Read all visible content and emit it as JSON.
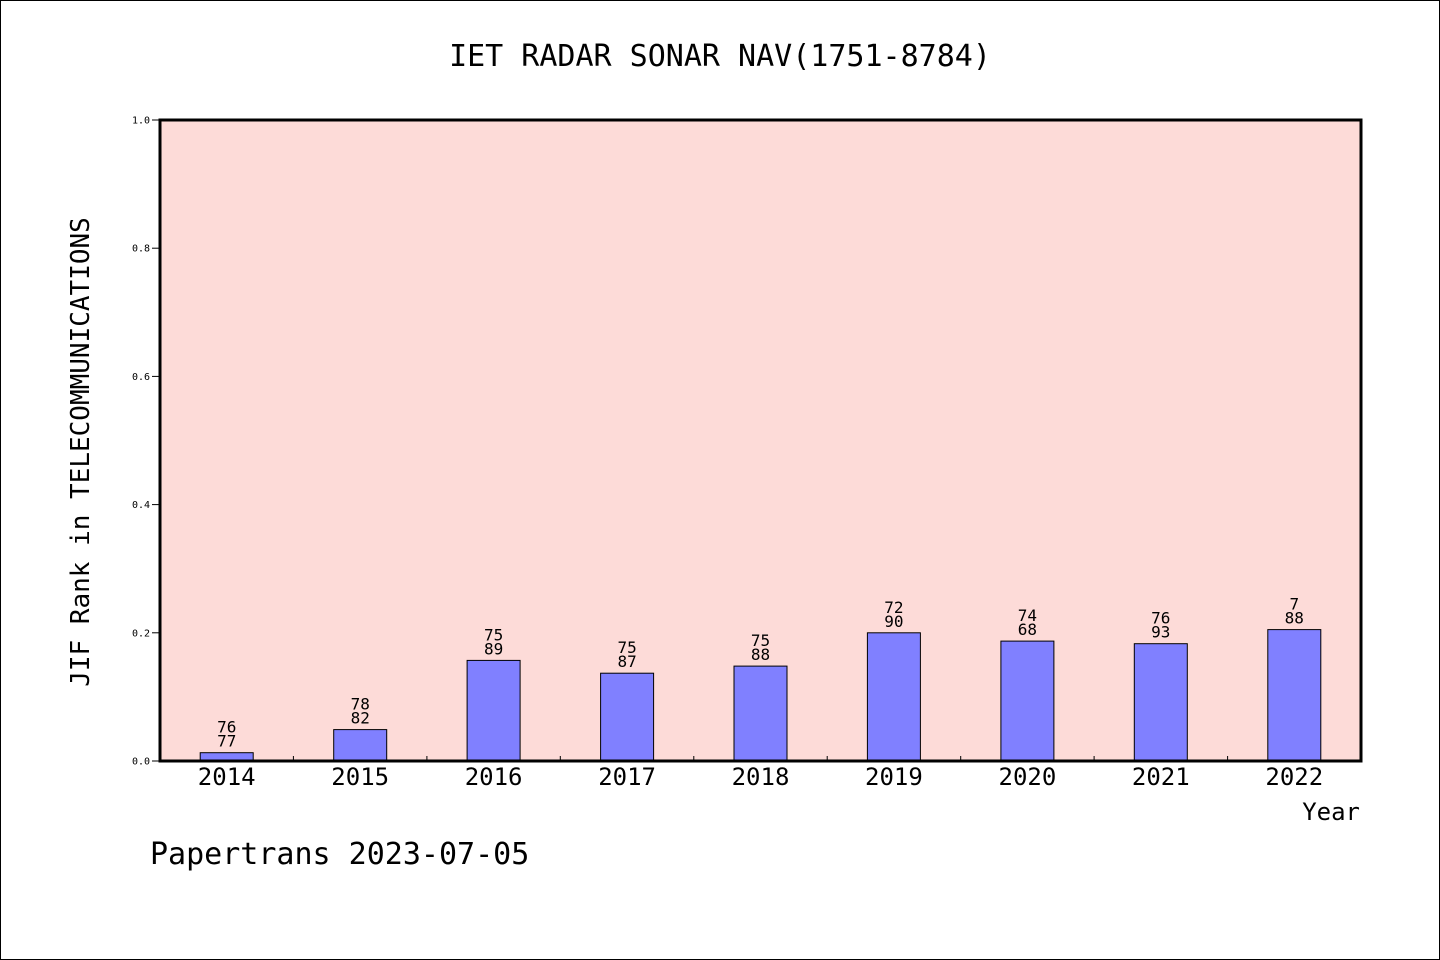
{
  "chart_data": {
    "type": "bar",
    "title": "IET RADAR SONAR NAV(1751-8784)",
    "xlabel": "Year",
    "ylabel": "JIF Rank in TELECOMMUNICATIONS",
    "categories": [
      "2014",
      "2015",
      "2016",
      "2017",
      "2018",
      "2019",
      "2020",
      "2021",
      "2022"
    ],
    "values": [
      0.013,
      0.049,
      0.157,
      0.137,
      0.148,
      0.2,
      0.187,
      0.183,
      0.205
    ],
    "bar_labels": [
      [
        "76",
        "77"
      ],
      [
        "78",
        "82"
      ],
      [
        "75",
        "89"
      ],
      [
        "75",
        "87"
      ],
      [
        "75",
        "88"
      ],
      [
        "72",
        "90"
      ],
      [
        "74",
        "68"
      ],
      [
        "76",
        "93"
      ],
      [
        "7",
        "88"
      ]
    ],
    "ylim": [
      0,
      1.0
    ],
    "yticks": [
      "0.0",
      "0.2",
      "0.4",
      "0.6",
      "0.8",
      "1.0"
    ],
    "grid": false,
    "colors": {
      "bar": "#8080ff",
      "plot_background": "#fddbd8"
    }
  },
  "footer": "Papertrans 2023-07-05"
}
